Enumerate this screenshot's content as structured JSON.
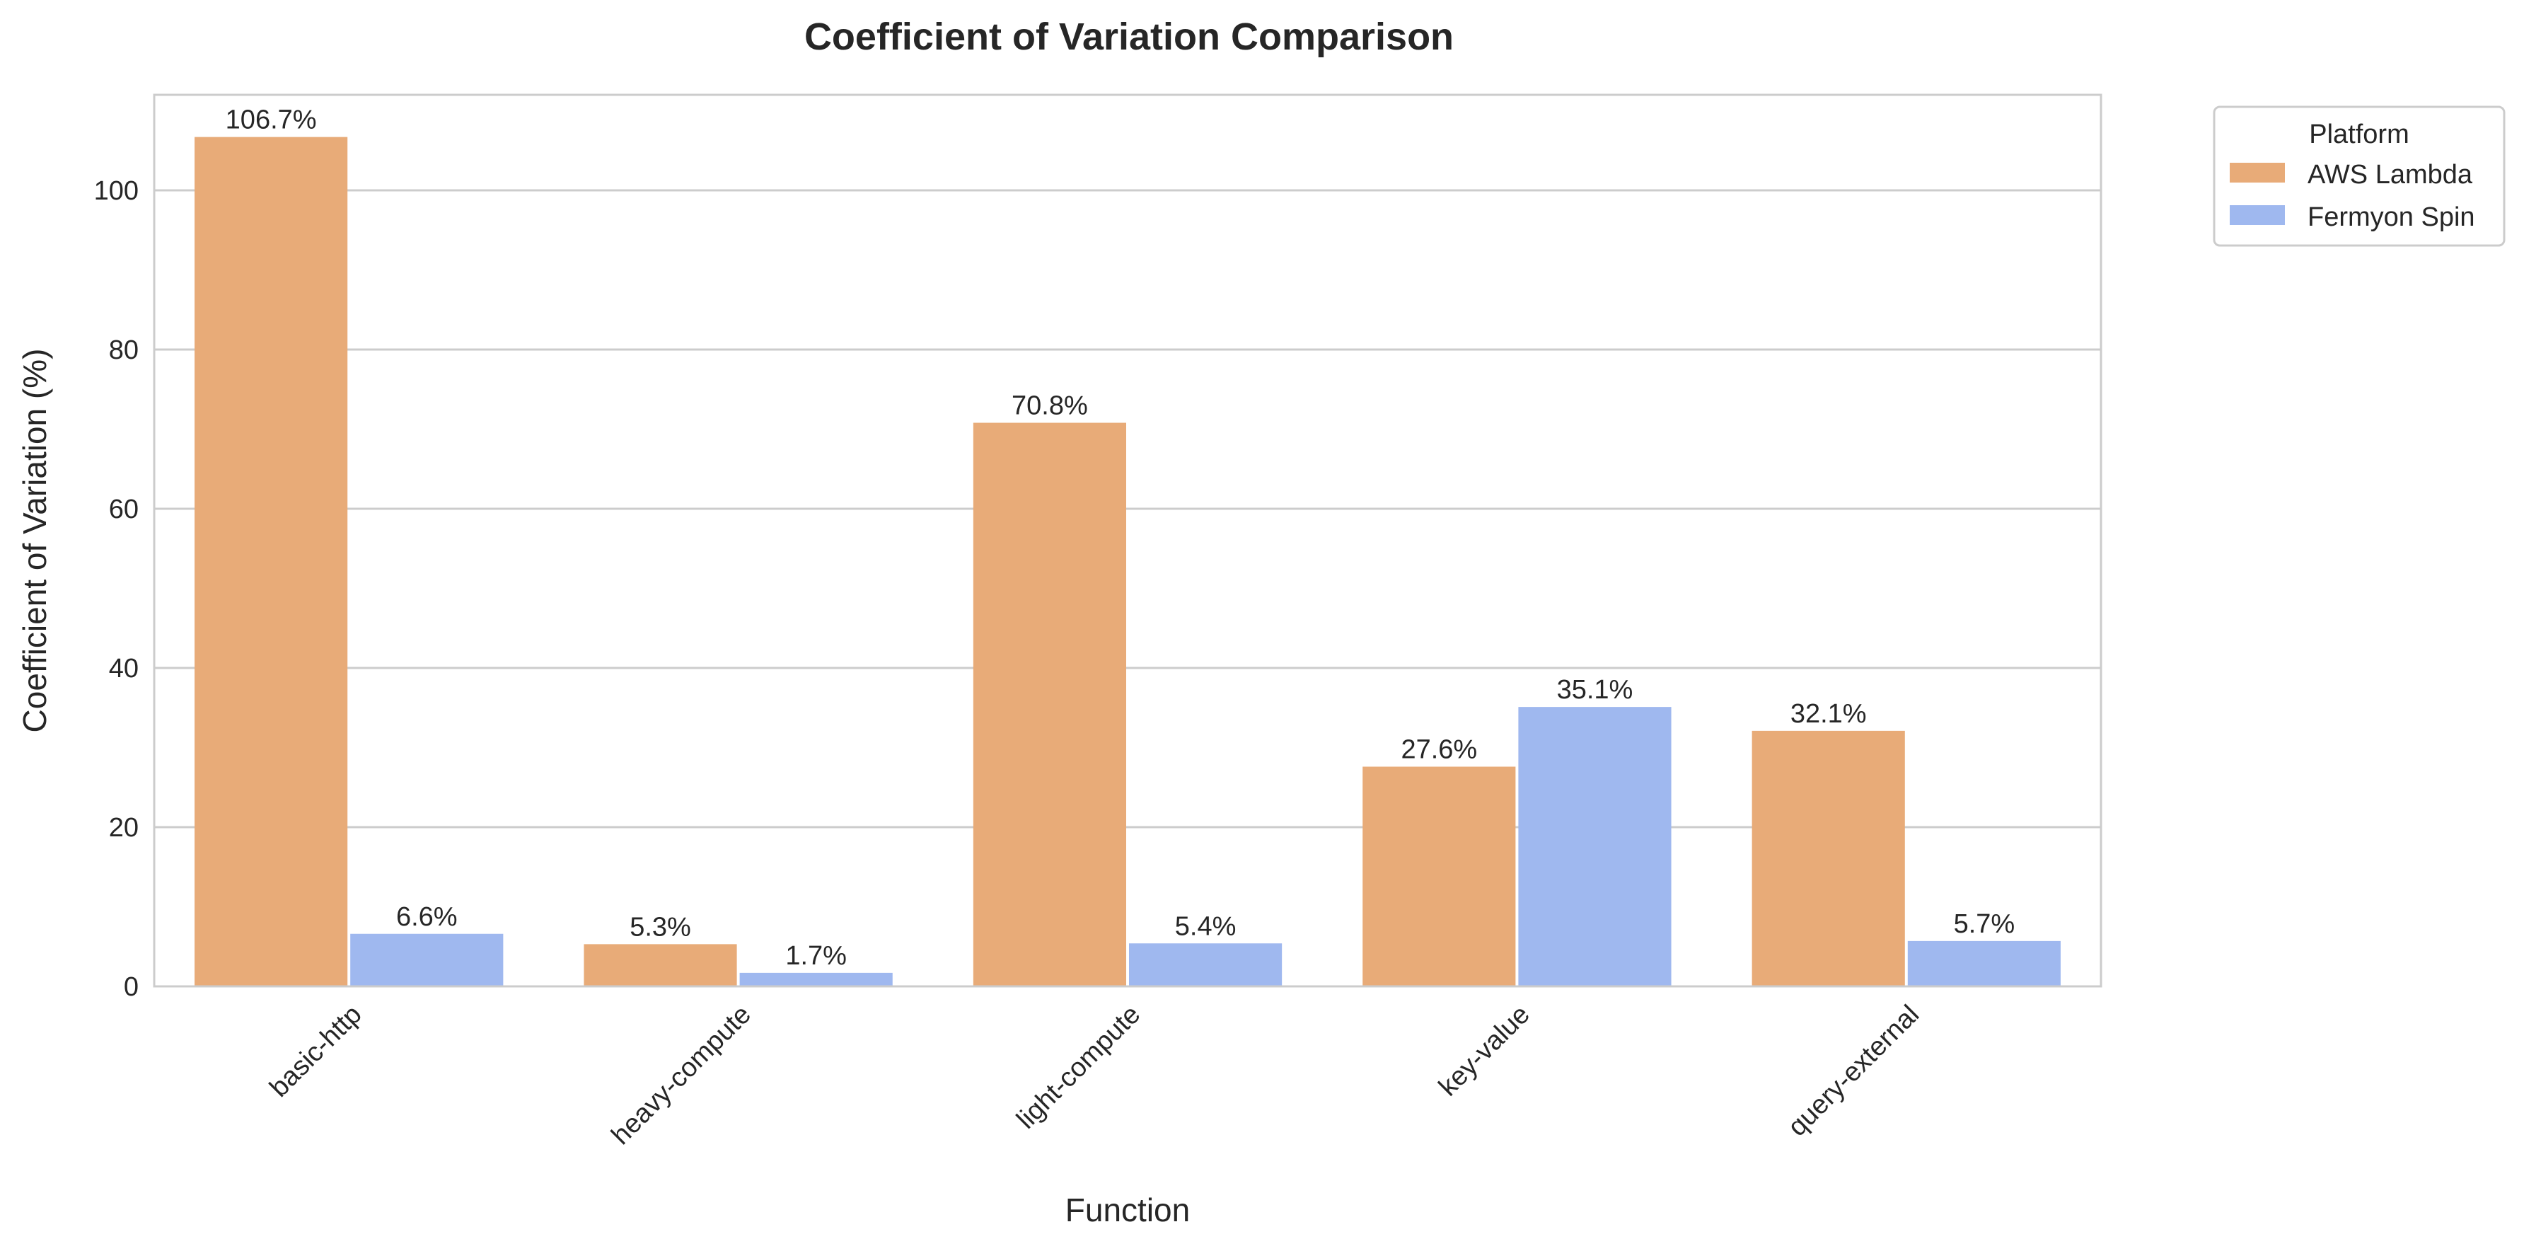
{
  "chart_data": {
    "type": "bar",
    "title": "Coefficient of Variation Comparison",
    "xlabel": "Function",
    "ylabel": "Coefficient of Variation (%)",
    "categories": [
      "basic-http",
      "heavy-compute",
      "light-compute",
      "key-value",
      "query-external"
    ],
    "series": [
      {
        "name": "AWS Lambda",
        "color": "#e8ab78",
        "values": [
          106.7,
          5.3,
          70.8,
          27.6,
          32.1
        ],
        "labels": [
          "106.7%",
          "5.3%",
          "70.8%",
          "27.6%",
          "32.1%"
        ]
      },
      {
        "name": "Fermyon Spin",
        "color": "#9fb8ef",
        "values": [
          6.6,
          1.7,
          5.4,
          35.1,
          5.7
        ],
        "labels": [
          "6.6%",
          "1.7%",
          "5.4%",
          "35.1%",
          "5.7%"
        ]
      }
    ],
    "ylim": [
      0,
      112
    ],
    "yticks": [
      0,
      20,
      40,
      60,
      80,
      100
    ],
    "ytick_labels": [
      "0",
      "20",
      "40",
      "60",
      "80",
      "100"
    ],
    "grid": true,
    "legend": {
      "title": "Platform",
      "placement": "outside-top-right"
    }
  }
}
